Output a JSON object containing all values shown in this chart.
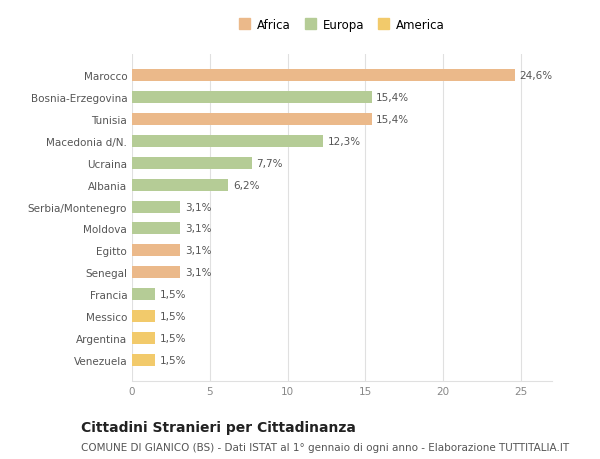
{
  "categories": [
    "Venezuela",
    "Argentina",
    "Messico",
    "Francia",
    "Senegal",
    "Egitto",
    "Moldova",
    "Serbia/Montenegro",
    "Albania",
    "Ucraina",
    "Macedonia d/N.",
    "Tunisia",
    "Bosnia-Erzegovina",
    "Marocco"
  ],
  "values": [
    1.5,
    1.5,
    1.5,
    1.5,
    3.1,
    3.1,
    3.1,
    3.1,
    6.2,
    7.7,
    12.3,
    15.4,
    15.4,
    24.6
  ],
  "labels": [
    "1,5%",
    "1,5%",
    "1,5%",
    "1,5%",
    "3,1%",
    "3,1%",
    "3,1%",
    "3,1%",
    "6,2%",
    "7,7%",
    "12,3%",
    "15,4%",
    "15,4%",
    "24,6%"
  ],
  "colors": [
    "#f2ca6b",
    "#f2ca6b",
    "#f2ca6b",
    "#b5cc96",
    "#ebb98a",
    "#ebb98a",
    "#b5cc96",
    "#b5cc96",
    "#b5cc96",
    "#b5cc96",
    "#b5cc96",
    "#ebb98a",
    "#b5cc96",
    "#ebb98a"
  ],
  "legend_labels": [
    "Africa",
    "Europa",
    "America"
  ],
  "legend_colors": [
    "#ebb98a",
    "#b5cc96",
    "#f2ca6b"
  ],
  "title": "Cittadini Stranieri per Cittadinanza",
  "subtitle": "COMUNE DI GIANICO (BS) - Dati ISTAT al 1° gennaio di ogni anno - Elaborazione TUTTITALIA.IT",
  "xlim": [
    0,
    27
  ],
  "xticks": [
    0,
    5,
    10,
    15,
    20,
    25
  ],
  "bg_color": "#ffffff",
  "bar_height": 0.55,
  "grid_color": "#e0e0e0",
  "title_fontsize": 10,
  "subtitle_fontsize": 7.5,
  "label_fontsize": 7.5,
  "tick_fontsize": 7.5,
  "legend_fontsize": 8.5
}
